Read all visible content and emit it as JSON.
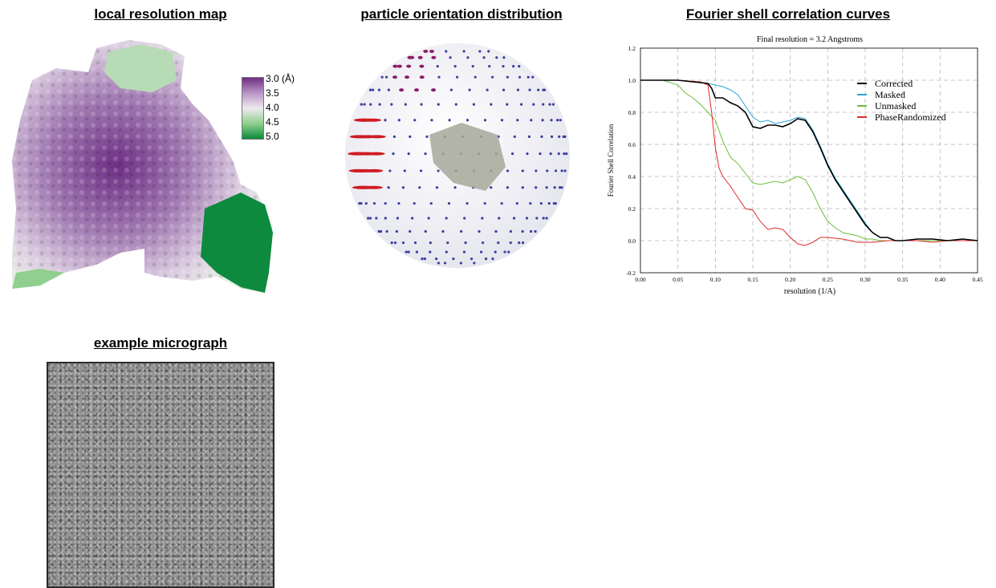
{
  "titles": {
    "local_resolution": "local resolution map",
    "orientation": "particle orientation distribution",
    "fsc": "Fourier shell correlation curves",
    "micrograph": "example micrograph"
  },
  "colorbar": {
    "labels": [
      "3.0 (Å)",
      "3.5",
      "4.0",
      "4.5",
      "5.0"
    ],
    "colors": [
      "#6e2f84",
      "#b995c6",
      "#efe9ef",
      "#8fcf8f",
      "#0a8a3a"
    ]
  },
  "orientation_colors": {
    "dots": "#3a3f9e",
    "high_density": "#d01c25",
    "mid_density": "#8a1f6a"
  },
  "chart_data": {
    "type": "line",
    "title": "Final resolution =   3.2 Angstroms",
    "xlabel": "resolution (1/A)",
    "ylabel": "Fourier Shell Correlation",
    "xlim": [
      0,
      0.45
    ],
    "ylim": [
      -0.2,
      1.2
    ],
    "xticks": [
      "0.00",
      "0.05",
      "0.10",
      "0.15",
      "0.20",
      "0.25",
      "0.30",
      "0.35",
      "0.40",
      "0.45"
    ],
    "yticks": [
      "-0.2",
      "0.0",
      "0.2",
      "0.4",
      "0.6",
      "0.8",
      "1.0",
      "1.2"
    ],
    "grid": true,
    "legend_position": "top-right",
    "series": [
      {
        "name": "Corrected",
        "color": "#000000",
        "x": [
          0,
          0.05,
          0.07,
          0.09,
          0.095,
          0.1,
          0.11,
          0.12,
          0.13,
          0.14,
          0.15,
          0.16,
          0.17,
          0.18,
          0.19,
          0.2,
          0.21,
          0.22,
          0.23,
          0.24,
          0.25,
          0.26,
          0.27,
          0.28,
          0.29,
          0.3,
          0.31,
          0.32,
          0.33,
          0.34,
          0.35,
          0.37,
          0.39,
          0.41,
          0.43,
          0.45
        ],
        "y": [
          1.0,
          1.0,
          0.99,
          0.98,
          0.95,
          0.89,
          0.89,
          0.86,
          0.84,
          0.8,
          0.71,
          0.7,
          0.72,
          0.72,
          0.71,
          0.73,
          0.76,
          0.75,
          0.68,
          0.58,
          0.47,
          0.38,
          0.31,
          0.24,
          0.17,
          0.1,
          0.05,
          0.02,
          0.02,
          0.0,
          0.0,
          0.01,
          0.01,
          0.0,
          0.01,
          0.0
        ]
      },
      {
        "name": "Masked",
        "color": "#2aa7d8",
        "x": [
          0,
          0.05,
          0.07,
          0.09,
          0.1,
          0.11,
          0.12,
          0.13,
          0.14,
          0.15,
          0.16,
          0.17,
          0.18,
          0.19,
          0.2,
          0.21,
          0.22,
          0.23,
          0.24,
          0.25,
          0.26,
          0.27,
          0.28,
          0.29,
          0.3,
          0.31,
          0.32,
          0.33,
          0.34,
          0.35,
          0.37,
          0.39,
          0.41,
          0.43,
          0.45
        ],
        "y": [
          1.0,
          1.0,
          0.99,
          0.98,
          0.97,
          0.96,
          0.94,
          0.91,
          0.84,
          0.77,
          0.74,
          0.75,
          0.73,
          0.74,
          0.75,
          0.77,
          0.76,
          0.69,
          0.59,
          0.48,
          0.39,
          0.32,
          0.25,
          0.18,
          0.11,
          0.05,
          0.02,
          0.02,
          0.0,
          0.0,
          0.01,
          0.01,
          0.0,
          0.01,
          0.0
        ]
      },
      {
        "name": "Unmasked",
        "color": "#6bbf3a",
        "x": [
          0,
          0.03,
          0.05,
          0.06,
          0.07,
          0.08,
          0.09,
          0.1,
          0.11,
          0.12,
          0.13,
          0.14,
          0.15,
          0.16,
          0.17,
          0.18,
          0.19,
          0.2,
          0.21,
          0.22,
          0.23,
          0.24,
          0.25,
          0.26,
          0.27,
          0.28,
          0.29,
          0.3,
          0.31,
          0.32,
          0.34,
          0.36,
          0.38,
          0.4,
          0.42,
          0.45
        ],
        "y": [
          1.0,
          1.0,
          0.97,
          0.92,
          0.89,
          0.85,
          0.8,
          0.75,
          0.62,
          0.52,
          0.48,
          0.42,
          0.36,
          0.35,
          0.36,
          0.37,
          0.36,
          0.38,
          0.4,
          0.38,
          0.3,
          0.2,
          0.12,
          0.08,
          0.05,
          0.04,
          0.03,
          0.01,
          0.01,
          0.0,
          0.0,
          0.0,
          0.0,
          0.0,
          0.0,
          0.0
        ]
      },
      {
        "name": "PhaseRandomized",
        "color": "#e02a2a",
        "x": [
          0,
          0.05,
          0.08,
          0.09,
          0.095,
          0.1,
          0.105,
          0.11,
          0.12,
          0.13,
          0.14,
          0.15,
          0.16,
          0.17,
          0.18,
          0.19,
          0.2,
          0.21,
          0.22,
          0.23,
          0.24,
          0.25,
          0.27,
          0.29,
          0.31,
          0.33,
          0.35,
          0.37,
          0.39,
          0.41,
          0.43,
          0.45
        ],
        "y": [
          1.0,
          1.0,
          0.99,
          0.97,
          0.8,
          0.58,
          0.45,
          0.4,
          0.34,
          0.27,
          0.2,
          0.19,
          0.12,
          0.07,
          0.08,
          0.07,
          0.02,
          -0.02,
          -0.03,
          -0.01,
          0.02,
          0.02,
          0.01,
          -0.01,
          -0.01,
          0.0,
          0.0,
          0.0,
          -0.01,
          0.0,
          0.0,
          0.0
        ]
      }
    ]
  }
}
